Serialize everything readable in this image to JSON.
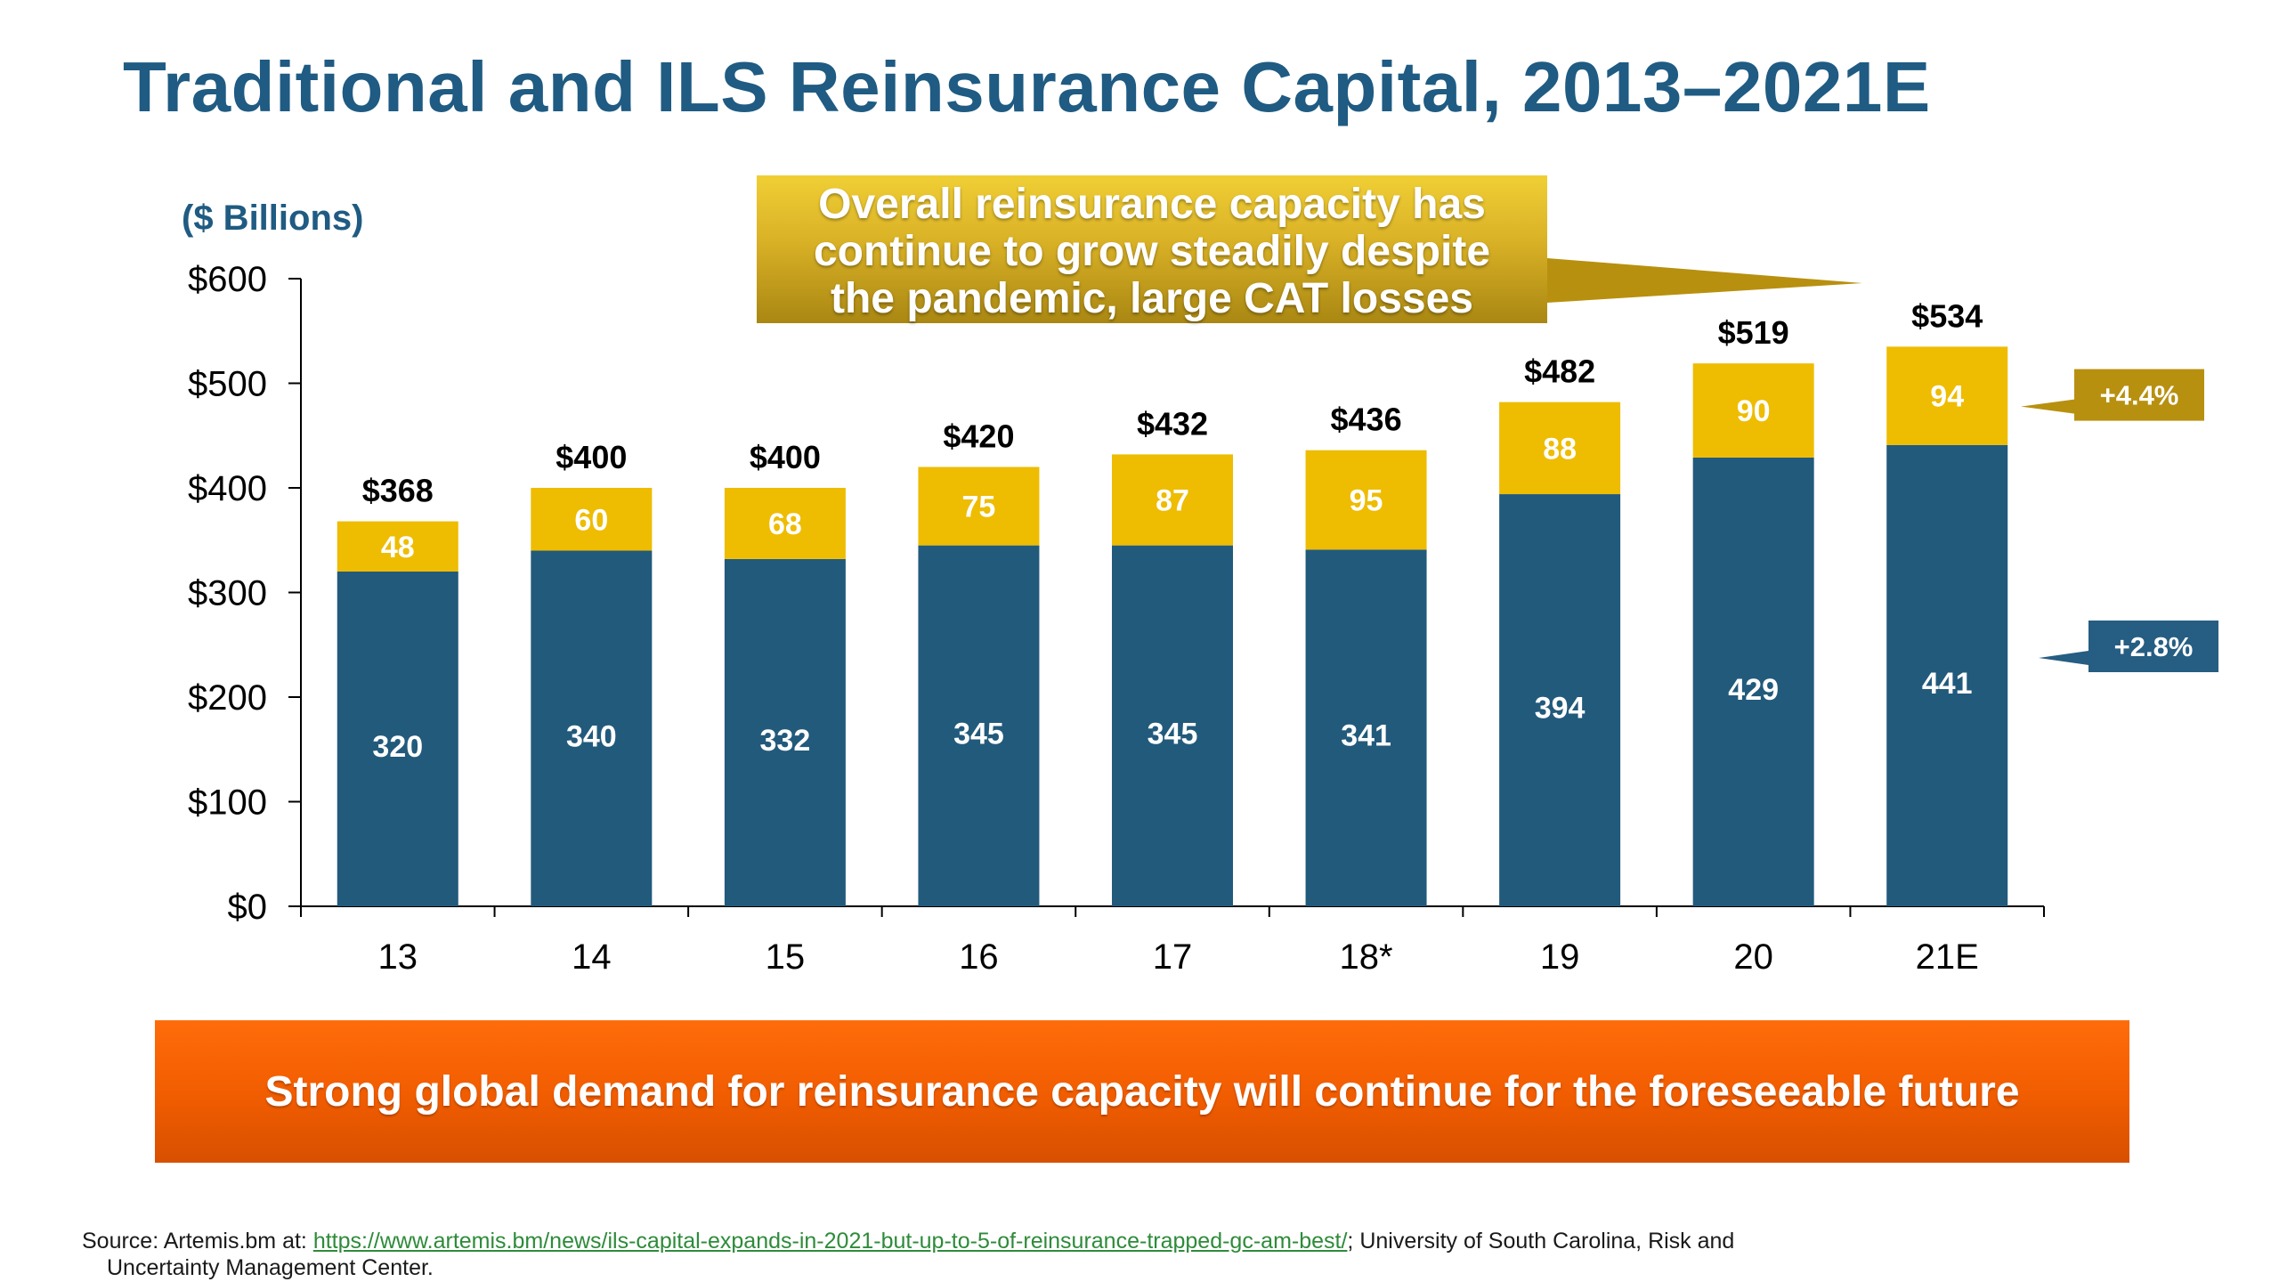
{
  "title": "Traditional and ILS Reinsurance Capital, 2013–2021E",
  "callout": {
    "lines": [
      "Overall reinsurance capacity has",
      "continue to grow steadily despite",
      "the pandemic, large CAT losses"
    ]
  },
  "banner": "Strong global demand for reinsurance capacity will continue for the foreseeable future",
  "source": {
    "prefix": "Source: Artemis.bm at: ",
    "link": "https://www.artemis.bm/news/ils-capital-expands-in-2021-but-up-to-5-of-reinsurance-trapped-gc-am-best/",
    "suffix": "; University of South Carolina, Risk and",
    "line2": "Uncertainty Management Center."
  },
  "colors": {
    "traditional": "#225a7c",
    "ils": "#eebc00",
    "title": "#1f5b82",
    "growth_ils_tag": "#b8900f",
    "growth_traditional_tag": "#265d82"
  },
  "chart_data": {
    "type": "bar",
    "stacked": true,
    "ylabel": "($ Billions)",
    "ylim": [
      0,
      600
    ],
    "yticks": [
      0,
      100,
      200,
      300,
      400,
      500,
      600
    ],
    "ytick_labels": [
      "$0",
      "$100",
      "$200",
      "$300",
      "$400",
      "$500",
      "$600"
    ],
    "categories": [
      "13",
      "14",
      "15",
      "16",
      "17",
      "18*",
      "19",
      "20",
      "21E"
    ],
    "series": [
      {
        "values": [
          320,
          340,
          332,
          345,
          345,
          341,
          394,
          429,
          441
        ]
      },
      {
        "values": [
          48,
          60,
          68,
          75,
          87,
          95,
          88,
          90,
          94
        ]
      }
    ],
    "totals": [
      "$368",
      "$400",
      "$400",
      "$420",
      "$432",
      "$436",
      "$482",
      "$519",
      "$534"
    ],
    "growth_labels": {
      "ils": "+4.4%",
      "traditional": "+2.8%"
    },
    "grid": false
  }
}
